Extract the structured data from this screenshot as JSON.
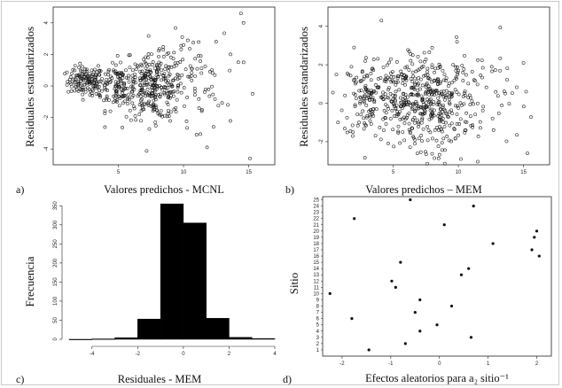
{
  "panels": {
    "a": {
      "letter": "a)",
      "xlabel": "Valores predichos - MCNL",
      "ylabel": "Residuales estandarizados"
    },
    "b": {
      "letter": "b)",
      "xlabel": "Valores predichos – MEM",
      "ylabel": "Residuales estandarizados"
    },
    "c": {
      "letter": "c)",
      "xlabel": "Residuales - MEM",
      "ylabel": "Frecuencia"
    },
    "d": {
      "letter": "d)",
      "xlabel": "Efectos aleatorios para a₂ sitio⁻¹",
      "ylabel": "Sitio"
    }
  },
  "chart_data": [
    {
      "type": "scatter",
      "panel": "a",
      "xlabel": "Valores predichos - MCNL",
      "ylabel": "Residuales estandarizados",
      "xlim": [
        0,
        17
      ],
      "ylim": [
        -5,
        5
      ],
      "xticks": [
        "5",
        "10",
        "15"
      ],
      "yticks": [
        "-4",
        "-2",
        "0",
        "2",
        "4"
      ],
      "clusters": [
        {
          "cx": 2.5,
          "cy": 0.3,
          "sx": 0.7,
          "sy": 0.45,
          "n": 130
        },
        {
          "cx": 5.0,
          "cy": 0.1,
          "sx": 1.0,
          "sy": 0.8,
          "n": 140
        },
        {
          "cx": 7.8,
          "cy": -0.1,
          "sx": 1.1,
          "sy": 1.0,
          "n": 260
        },
        {
          "cx": 10.5,
          "cy": 0.3,
          "sx": 1.3,
          "sy": 1.5,
          "n": 70
        }
      ],
      "outliers": [
        [
          14.4,
          4.6
        ],
        [
          14.6,
          4.0
        ],
        [
          13.6,
          2.0
        ],
        [
          13.4,
          -1.2
        ],
        [
          15.3,
          -0.5
        ],
        [
          14.2,
          1.5
        ],
        [
          11.0,
          -3.1
        ],
        [
          15.1,
          -4.6
        ],
        [
          12.3,
          -2.6
        ],
        [
          9.9,
          3.1
        ],
        [
          12.5,
          2.8
        ],
        [
          11.4,
          -1.6
        ],
        [
          11.8,
          -3.9
        ]
      ]
    },
    {
      "type": "scatter",
      "panel": "b",
      "xlabel": "Valores predichos – MEM",
      "ylabel": "Residuales estandarizados",
      "xlim": [
        0,
        17
      ],
      "ylim": [
        -3.2,
        5
      ],
      "xticks": [
        "5",
        "10",
        "15"
      ],
      "yticks": [
        "-2",
        "0",
        "2",
        "4"
      ],
      "clusters": [
        {
          "cx": 3.0,
          "cy": 0.3,
          "sx": 0.9,
          "sy": 1.1,
          "n": 120
        },
        {
          "cx": 5.5,
          "cy": 0.2,
          "sx": 1.0,
          "sy": 1.1,
          "n": 170
        },
        {
          "cx": 8.3,
          "cy": 0.0,
          "sx": 1.3,
          "sy": 1.2,
          "n": 280
        },
        {
          "cx": 11.5,
          "cy": 0.3,
          "sx": 1.5,
          "sy": 1.4,
          "n": 60
        }
      ],
      "outliers": [
        [
          4.1,
          4.3
        ],
        [
          15.0,
          2.1
        ],
        [
          15.2,
          0.6
        ],
        [
          15.3,
          -2.6
        ],
        [
          2.0,
          2.9
        ],
        [
          10.2,
          -2.9
        ],
        [
          13.6,
          0.5
        ],
        [
          12.7,
          -1.4
        ],
        [
          9.9,
          3.2
        ],
        [
          1.9,
          -1.7
        ]
      ]
    },
    {
      "type": "histogram",
      "panel": "c",
      "xlabel": "Residuales - MEM",
      "ylabel": "Frecuencia",
      "bin_edges": [
        -5,
        -4,
        -3,
        -2,
        -1,
        0,
        1,
        2,
        3,
        4
      ],
      "counts": [
        0,
        1,
        4,
        53,
        355,
        305,
        55,
        5,
        2
      ],
      "xlim": [
        -5,
        4
      ],
      "ylim": [
        0,
        360
      ],
      "xticks": [
        "-4",
        "-2",
        "0",
        "2",
        "4"
      ],
      "yticks": [
        "0",
        "50",
        "100",
        "150",
        "200",
        "250",
        "300",
        "350"
      ]
    },
    {
      "type": "scatter",
      "panel": "d",
      "xlabel": "Efectos aleatorios para a₂ sitio⁻¹",
      "ylabel": "Sitio",
      "xlim": [
        -2.4,
        2.3
      ],
      "ylim": [
        0,
        25.5
      ],
      "xticks": [
        "-2",
        "-1",
        "0",
        "1",
        "2"
      ],
      "yticks": [
        "1",
        "2",
        "3",
        "4",
        "5",
        "6",
        "7",
        "8",
        "9",
        "10",
        "11",
        "12",
        "13",
        "14",
        "15",
        "16",
        "17",
        "18",
        "19",
        "20",
        "21",
        "22",
        "23",
        "24",
        "25"
      ],
      "points": [
        {
          "x": -1.45,
          "y": 1
        },
        {
          "x": -0.7,
          "y": 2
        },
        {
          "x": 0.65,
          "y": 3
        },
        {
          "x": -0.4,
          "y": 4
        },
        {
          "x": -0.05,
          "y": 5
        },
        {
          "x": -1.8,
          "y": 6
        },
        {
          "x": -0.5,
          "y": 7
        },
        {
          "x": 0.25,
          "y": 8
        },
        {
          "x": -0.4,
          "y": 9
        },
        {
          "x": -2.25,
          "y": 10
        },
        {
          "x": -0.9,
          "y": 11
        },
        {
          "x": -0.98,
          "y": 12
        },
        {
          "x": 0.45,
          "y": 13
        },
        {
          "x": 0.6,
          "y": 14
        },
        {
          "x": -0.8,
          "y": 15
        },
        {
          "x": 2.05,
          "y": 16
        },
        {
          "x": 1.9,
          "y": 17
        },
        {
          "x": 1.1,
          "y": 18
        },
        {
          "x": 1.95,
          "y": 19
        },
        {
          "x": 2.0,
          "y": 20
        },
        {
          "x": 0.1,
          "y": 21
        },
        {
          "x": -1.75,
          "y": 22
        },
        {
          "x": 0.7,
          "y": 24
        },
        {
          "x": -0.6,
          "y": 25
        }
      ]
    }
  ]
}
